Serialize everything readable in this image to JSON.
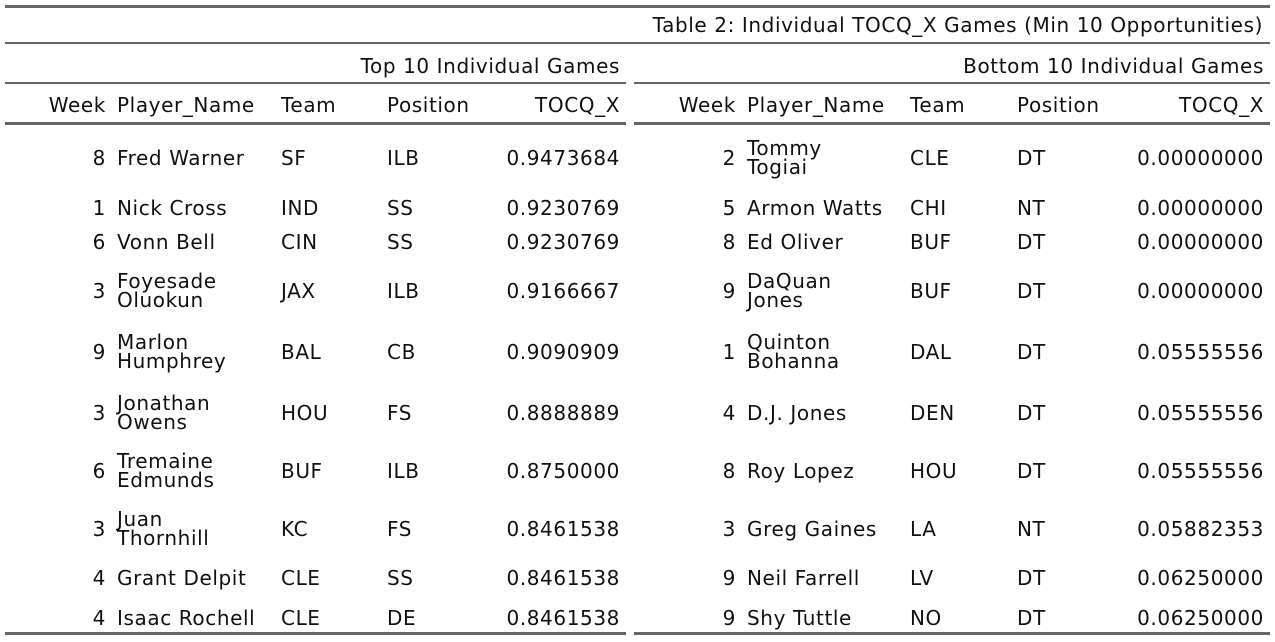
{
  "caption": "Table 2: Individual TOCQ_X Games (Min 10 Opportunities)",
  "top_title": "Top 10 Individual Games",
  "bottom_title": "Bottom 10 Individual Games",
  "headers": {
    "week": "Week",
    "player": "Player_Name",
    "team": "Team",
    "position": "Position",
    "tocq": "TOCQ_X"
  },
  "top": [
    {
      "week": "8",
      "player": [
        "Fred Warner"
      ],
      "team": "SF",
      "position": "ILB",
      "tocq": "0.9473684"
    },
    {
      "week": "1",
      "player": [
        "Nick Cross"
      ],
      "team": "IND",
      "position": "SS",
      "tocq": "0.9230769"
    },
    {
      "week": "6",
      "player": [
        "Vonn Bell"
      ],
      "team": "CIN",
      "position": "SS",
      "tocq": "0.9230769"
    },
    {
      "week": "3",
      "player": [
        "Foyesade",
        "Oluokun"
      ],
      "team": "JAX",
      "position": "ILB",
      "tocq": "0.9166667"
    },
    {
      "week": "9",
      "player": [
        "Marlon",
        "Humphrey"
      ],
      "team": "BAL",
      "position": "CB",
      "tocq": "0.9090909"
    },
    {
      "week": "3",
      "player": [
        "Jonathan",
        "Owens"
      ],
      "team": "HOU",
      "position": "FS",
      "tocq": "0.8888889"
    },
    {
      "week": "6",
      "player": [
        "Tremaine",
        "Edmunds"
      ],
      "team": "BUF",
      "position": "ILB",
      "tocq": "0.8750000"
    },
    {
      "week": "3",
      "player": [
        "Juan",
        "Thornhill"
      ],
      "team": "KC",
      "position": "FS",
      "tocq": "0.8461538"
    },
    {
      "week": "4",
      "player": [
        "Grant Delpit"
      ],
      "team": "CLE",
      "position": "SS",
      "tocq": "0.8461538"
    },
    {
      "week": "4",
      "player": [
        "Isaac Rochell"
      ],
      "team": "CLE",
      "position": "DE",
      "tocq": "0.8461538"
    }
  ],
  "bottom": [
    {
      "week": "2",
      "player": [
        "Tommy",
        "Togiai"
      ],
      "team": "CLE",
      "position": "DT",
      "tocq": "0.00000000"
    },
    {
      "week": "5",
      "player": [
        "Armon Watts"
      ],
      "team": "CHI",
      "position": "NT",
      "tocq": "0.00000000"
    },
    {
      "week": "8",
      "player": [
        "Ed Oliver"
      ],
      "team": "BUF",
      "position": "DT",
      "tocq": "0.00000000"
    },
    {
      "week": "9",
      "player": [
        "DaQuan",
        "Jones"
      ],
      "team": "BUF",
      "position": "DT",
      "tocq": "0.00000000"
    },
    {
      "week": "1",
      "player": [
        "Quinton",
        "Bohanna"
      ],
      "team": "DAL",
      "position": "DT",
      "tocq": "0.05555556"
    },
    {
      "week": "4",
      "player": [
        "D.J. Jones"
      ],
      "team": "DEN",
      "position": "DT",
      "tocq": "0.05555556"
    },
    {
      "week": "8",
      "player": [
        "Roy Lopez"
      ],
      "team": "HOU",
      "position": "DT",
      "tocq": "0.05555556"
    },
    {
      "week": "3",
      "player": [
        "Greg Gaines"
      ],
      "team": "LA",
      "position": "NT",
      "tocq": "0.05882353"
    },
    {
      "week": "9",
      "player": [
        "Neil Farrell"
      ],
      "team": "LV",
      "position": "DT",
      "tocq": "0.06250000"
    },
    {
      "week": "9",
      "player": [
        "Shy Tuttle"
      ],
      "team": "NO",
      "position": "DT",
      "tocq": "0.06250000"
    }
  ]
}
